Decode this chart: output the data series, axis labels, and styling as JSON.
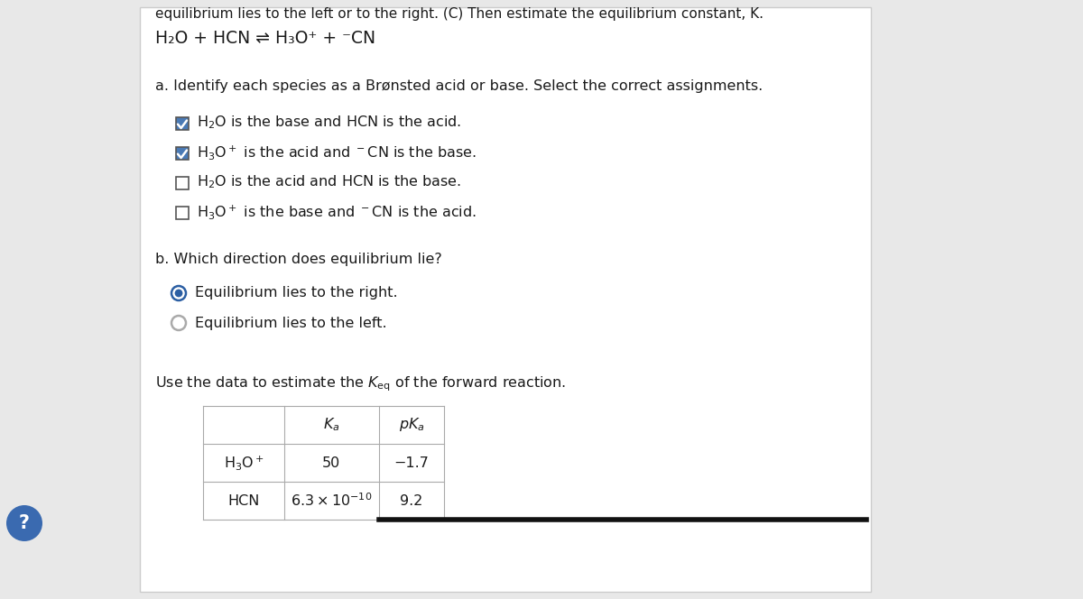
{
  "bg_color": "#e8e8e8",
  "panel_color": "#ffffff",
  "panel_border": "#cccccc",
  "text_color": "#1a1a1a",
  "check_fill": "#4a7ab5",
  "check_border": "#555555",
  "radio_fill": "#2c5fa3",
  "radio_border": "#333333",
  "table_border": "#aaaaaa",
  "font_size": 11.5,
  "header_text": "equilibrium lies to the left or to the right. (C) Then estimate the equilibrium constant, K.",
  "reaction_text": "H₂O + HCN ⇌ H₃O⁺ + ⁻CN",
  "part_a": "a. Identify each species as a Brønsted acid or base. Select the correct assignments.",
  "cb_labels": [
    "H₂O is the base and HCN is the acid.",
    "H₃O⁺ is the acid and ⁻CN is the base.",
    "H₂O is the acid and HCN is the base.",
    "H₃O⁺ is the base and ⁻CN is the acid."
  ],
  "cb_latex": [
    "$\\mathregular{H_2O}$ is the base and HCN is the acid.",
    "$\\mathregular{H_3O^+}$ is the acid and $^-$CN is the base.",
    "$\\mathregular{H_2O}$ is the acid and HCN is the base.",
    "$\\mathregular{H_3O^+}$ is the base and $^-$CN is the acid."
  ],
  "cb_checked": [
    true,
    true,
    false,
    false
  ],
  "part_b": "b. Which direction does equilibrium lie?",
  "radio_labels": [
    "Equilibrium lies to the right.",
    "Equilibrium lies to the left."
  ],
  "radio_selected": [
    true,
    false
  ],
  "keq_line": "Use the data to estimate the $K_{\\mathrm{eq}}$ of the forward reaction.",
  "tbl_col1": [
    "",
    "H₃O⁺",
    "HCN"
  ],
  "tbl_col2": [
    "$K_a$",
    "50",
    "$6.3 \\times 10^{-10}$"
  ],
  "tbl_col3": [
    "p$K_a$",
    "-1.7",
    "9.2"
  ],
  "bottom_bar_color": "#111111"
}
